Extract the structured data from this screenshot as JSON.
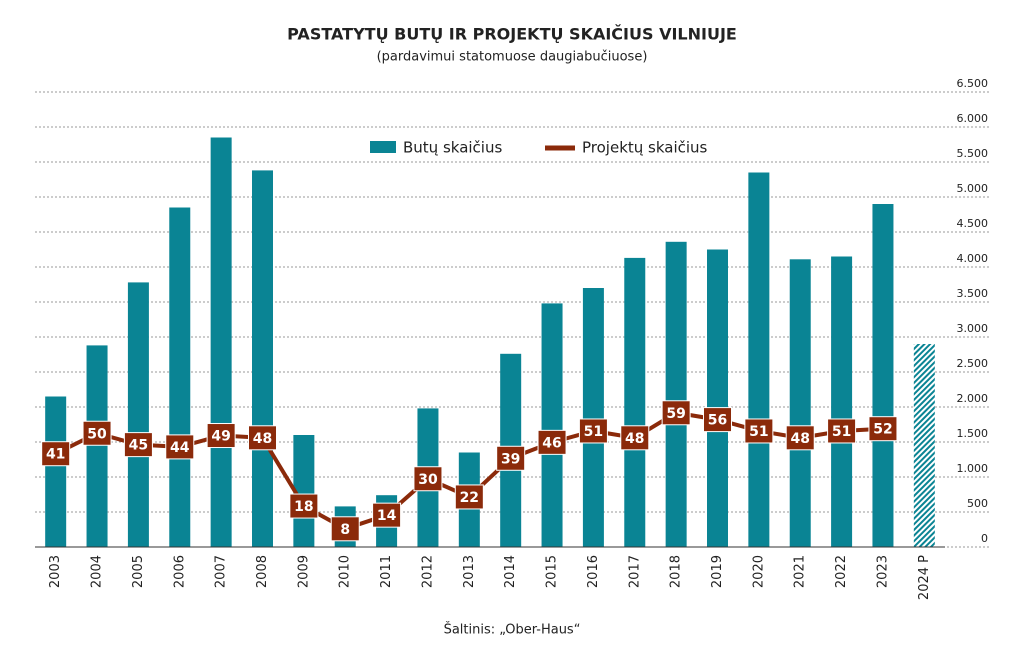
{
  "chart_data": {
    "type": "bar_line",
    "title": "PASTATYTŲ BUTŲ IR PROJEKTŲ SKAIČIUS VILNIUJE",
    "subtitle": "(pardavimui statomuose daugiabučiuose)",
    "source": "Šaltinis: „Ober-Haus“",
    "categories": [
      "2003",
      "2004",
      "2005",
      "2006",
      "2007",
      "2008",
      "2009",
      "2010",
      "2011",
      "2012",
      "2013",
      "2014",
      "2015",
      "2016",
      "2017",
      "2018",
      "2019",
      "2020",
      "2021",
      "2022",
      "2023",
      "2024 P"
    ],
    "series": [
      {
        "name": "Butų skaičius",
        "type": "bar",
        "color": "#0a8494",
        "values": [
          2150,
          2880,
          3780,
          4850,
          5850,
          5380,
          1600,
          580,
          740,
          1980,
          1350,
          2760,
          3480,
          3700,
          4130,
          4360,
          4250,
          5350,
          4110,
          4150,
          4900,
          2900
        ],
        "hatch": [
          false,
          false,
          false,
          false,
          false,
          false,
          false,
          false,
          false,
          false,
          false,
          false,
          false,
          false,
          false,
          false,
          false,
          false,
          false,
          false,
          false,
          true
        ]
      },
      {
        "name": "Projektų skaičius",
        "type": "line",
        "color": "#8b2a0a",
        "axis": "y2",
        "values": [
          41,
          50,
          45,
          44,
          49,
          48,
          18,
          8,
          14,
          30,
          22,
          39,
          46,
          51,
          48,
          59,
          56,
          51,
          48,
          51,
          52,
          null
        ]
      }
    ],
    "ylim": [
      0,
      6500
    ],
    "yticks": [
      0,
      500,
      {
        "value": 1000,
        "label": "1.000"
      },
      {
        "value": 1500,
        "label": "1.500"
      },
      {
        "value": 2000,
        "label": "2.000"
      },
      {
        "value": 2500,
        "label": "2.500"
      },
      {
        "value": 3000,
        "label": "3.000"
      },
      {
        "value": 3500,
        "label": "3.500"
      },
      {
        "value": 4000,
        "label": "4.000"
      },
      {
        "value": 4500,
        "label": "4.500"
      },
      {
        "value": 5000,
        "label": "5.000"
      },
      {
        "value": 5500,
        "label": "5.500"
      },
      {
        "value": 6000,
        "label": "6.000"
      },
      {
        "value": 6500,
        "label": "6.500"
      }
    ],
    "y2lim": [
      0,
      200
    ],
    "grid": true
  }
}
